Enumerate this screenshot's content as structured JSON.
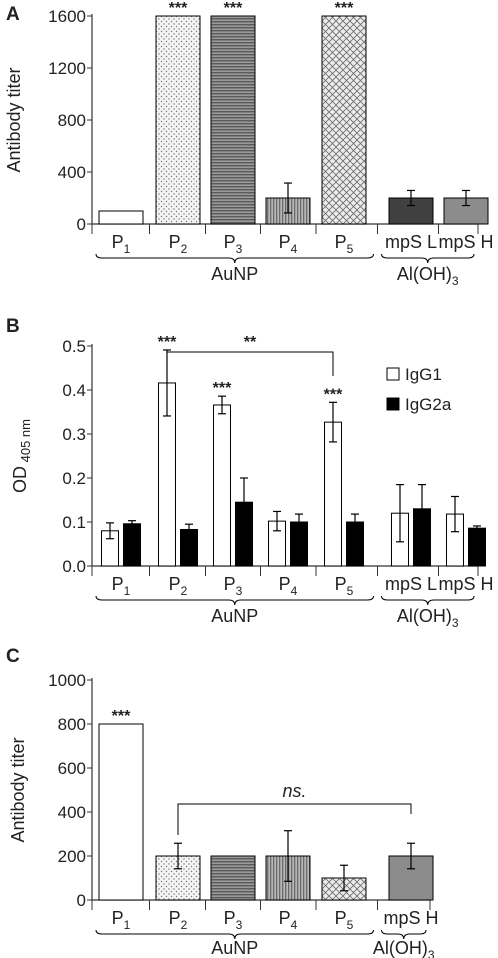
{
  "chart_data": [
    {
      "panel": "A",
      "type": "bar",
      "ylabel": "Antibody titer",
      "ylim": [
        0,
        1600
      ],
      "yticks": [
        "0",
        "400",
        "800",
        "1200",
        "1600"
      ],
      "categories": [
        {
          "main": "P",
          "sub": "1"
        },
        {
          "main": "P",
          "sub": "2"
        },
        {
          "main": "P",
          "sub": "3"
        },
        {
          "main": "P",
          "sub": "4"
        },
        {
          "main": "P",
          "sub": "5"
        },
        {
          "main": "mpS L",
          "sub": ""
        },
        {
          "main": "mpS H",
          "sub": ""
        }
      ],
      "values": [
        100,
        1600,
        1600,
        200,
        1600,
        200,
        200
      ],
      "errors": [
        0,
        0,
        0,
        115,
        0,
        58,
        58
      ],
      "fills": [
        "white",
        "dots",
        "hstripes",
        "vstripes",
        "crosshatch",
        "#404040",
        "#8c8c8c"
      ],
      "significance": [
        "",
        "***",
        "***",
        "",
        "***",
        "",
        ""
      ],
      "groups": [
        {
          "main": "AuNP",
          "sub": "",
          "tail": "",
          "from": 0,
          "to": 4
        },
        {
          "main": "Al(OH)",
          "sub": "3",
          "tail": "",
          "from": 5,
          "to": 6
        }
      ]
    },
    {
      "panel": "B",
      "type": "bar",
      "ylabel": {
        "main": "OD",
        "sub": "405 nm"
      },
      "ylim": [
        0,
        0.5
      ],
      "yticks": [
        "0.0",
        "0.1",
        "0.2",
        "0.3",
        "0.4",
        "0.5"
      ],
      "categories": [
        {
          "main": "P",
          "sub": "1"
        },
        {
          "main": "P",
          "sub": "2"
        },
        {
          "main": "P",
          "sub": "3"
        },
        {
          "main": "P",
          "sub": "4"
        },
        {
          "main": "P",
          "sub": "5"
        },
        {
          "main": "mpS L",
          "sub": ""
        },
        {
          "main": "mpS H",
          "sub": ""
        }
      ],
      "legend_position": "top-right",
      "series": [
        {
          "name": "IgG1",
          "color": "#ffffff",
          "values": [
            0.08,
            0.416,
            0.366,
            0.102,
            0.327,
            0.12,
            0.118
          ],
          "errors": [
            0.018,
            0.075,
            0.02,
            0.022,
            0.045,
            0.065,
            0.04
          ],
          "significance": [
            "",
            "***",
            "***",
            "",
            "***",
            "",
            ""
          ]
        },
        {
          "name": "IgG2a",
          "color": "#000000",
          "values": [
            0.096,
            0.083,
            0.145,
            0.1,
            0.1,
            0.13,
            0.086
          ],
          "errors": [
            0.007,
            0.012,
            0.055,
            0.018,
            0.018,
            0.055,
            0.005
          ],
          "significance": [
            "",
            "",
            "",
            "",
            "",
            "",
            ""
          ]
        }
      ],
      "comparison": {
        "label": "**",
        "from": 1,
        "to": 4
      },
      "groups": [
        {
          "main": "AuNP",
          "sub": "",
          "tail": "",
          "from": 0,
          "to": 4
        },
        {
          "main": "Al(OH)",
          "sub": "3",
          "tail": "",
          "from": 5,
          "to": 6
        }
      ]
    },
    {
      "panel": "C",
      "type": "bar",
      "ylabel": "Antibody titer",
      "ylim": [
        0,
        1000
      ],
      "yticks": [
        "0",
        "200",
        "400",
        "600",
        "800",
        "1000"
      ],
      "categories": [
        {
          "main": "P",
          "sub": "1"
        },
        {
          "main": "P",
          "sub": "2"
        },
        {
          "main": "P",
          "sub": "3"
        },
        {
          "main": "P",
          "sub": "4"
        },
        {
          "main": "P",
          "sub": "5"
        },
        {
          "main": "mpS H",
          "sub": ""
        }
      ],
      "values": [
        800,
        200,
        200,
        200,
        100,
        200
      ],
      "errors": [
        0,
        58,
        0,
        115,
        58,
        58
      ],
      "fills": [
        "white",
        "dots",
        "hstripes",
        "vstripes",
        "crosshatch",
        "#8c8c8c"
      ],
      "significance": [
        "***",
        "",
        "",
        "",
        "",
        ""
      ],
      "comparison": {
        "label": "ns.",
        "from": 1,
        "to": 5
      },
      "groups": [
        {
          "main": "AuNP",
          "sub": "",
          "tail": "",
          "from": 0,
          "to": 4
        },
        {
          "main": "Al(OH)",
          "sub": "3",
          "tail": "",
          "from": 5,
          "to": 5
        }
      ]
    }
  ]
}
